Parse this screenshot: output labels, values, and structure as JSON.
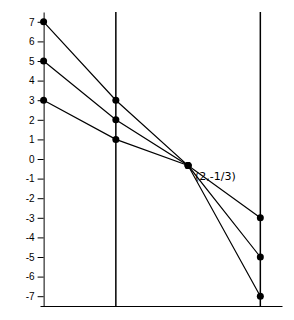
{
  "chart_data": {
    "type": "line",
    "x": [
      0,
      1,
      2,
      3
    ],
    "series": [
      {
        "values": [
          7,
          3,
          -0.3333,
          -7
        ],
        "marker": "circle"
      },
      {
        "values": [
          5,
          2,
          -0.3333,
          -5
        ],
        "marker": "circle"
      },
      {
        "values": [
          3,
          1,
          -0.3333,
          -3
        ],
        "marker": "circle"
      }
    ],
    "color": "#000000",
    "vlines": [
      1,
      3
    ],
    "annotations": [
      {
        "text": "(2,-1/3)",
        "x": 2,
        "y": -0.3333
      }
    ],
    "xlim": [
      -0.05,
      3.3
    ],
    "ylim": [
      -7.5,
      7.5
    ],
    "yticks": [
      -7,
      -6,
      -5,
      -4,
      -3,
      -2,
      -1,
      0,
      1,
      2,
      3,
      4,
      5,
      6,
      7
    ],
    "tick_labels": "y",
    "grid": false
  }
}
